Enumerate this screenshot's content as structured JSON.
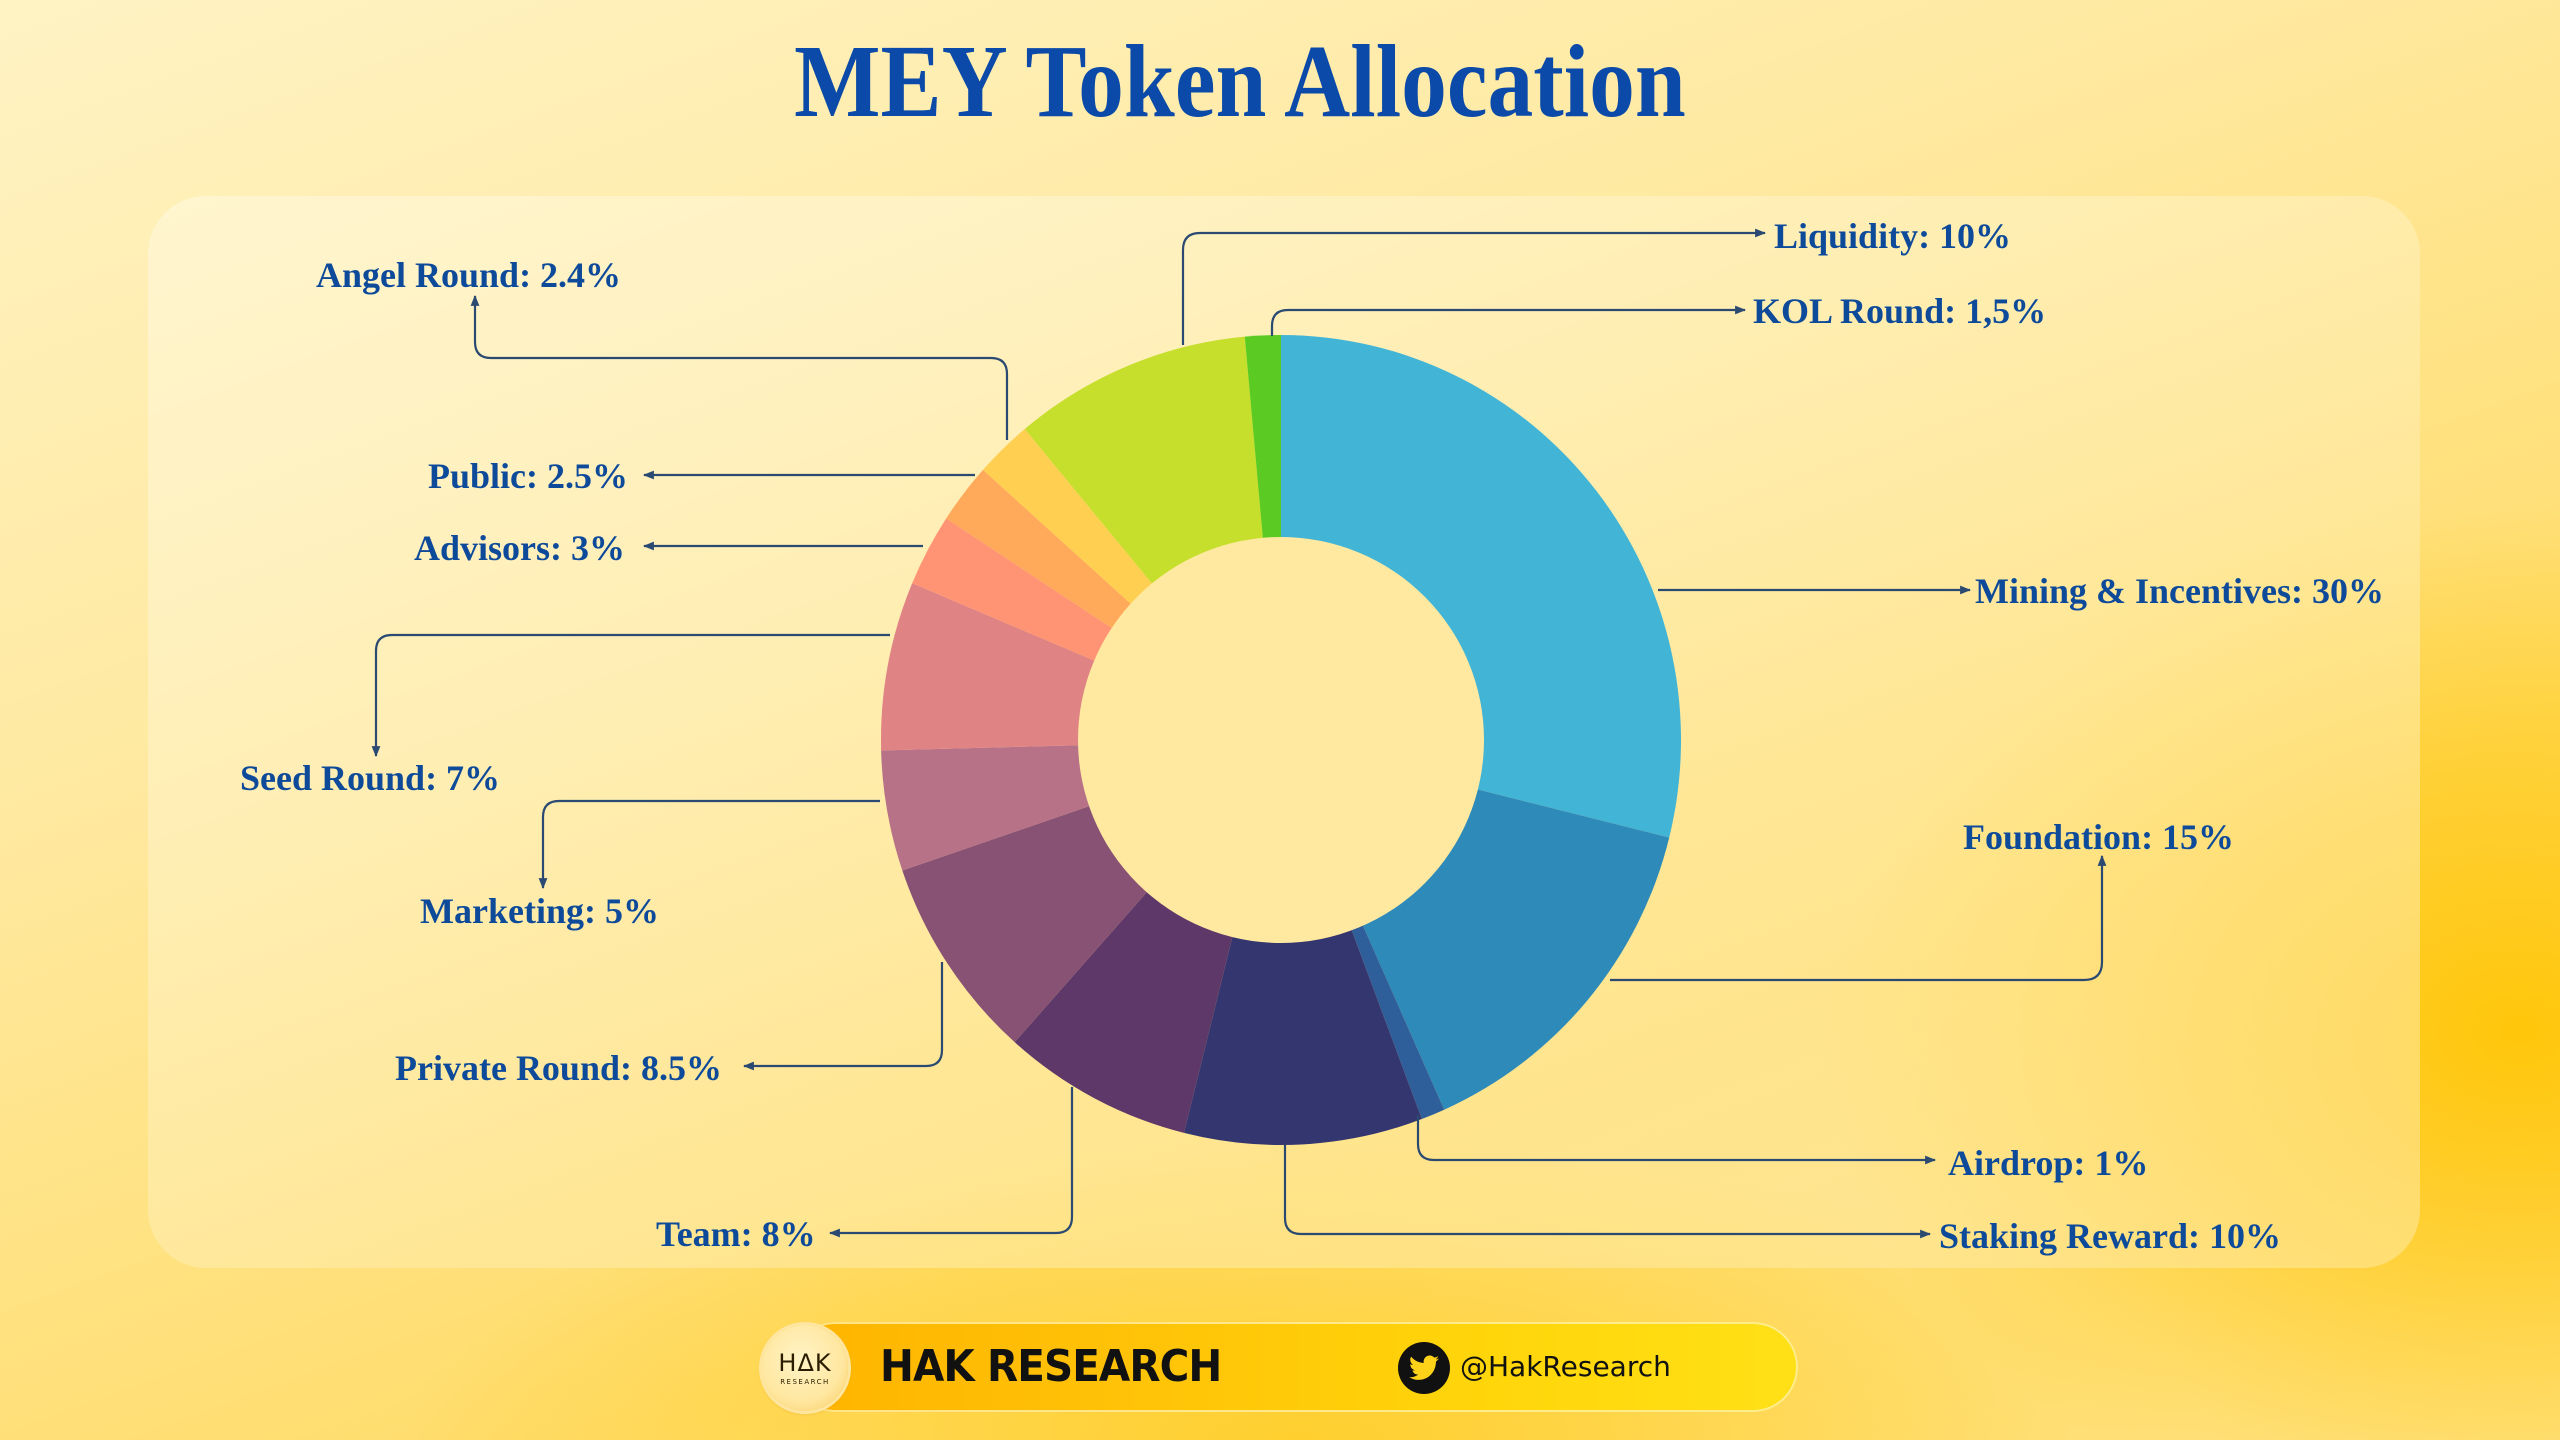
{
  "title": "MEY Token Allocation",
  "chart_data": {
    "type": "pie",
    "subtype": "donut",
    "title": "MEY Token Allocation",
    "unit": "%",
    "categories": [
      "Mining & Incentives",
      "Foundation",
      "Airdrop",
      "Staking Reward",
      "Team",
      "Private Round",
      "Marketing",
      "Seed Round",
      "Advisors",
      "Public",
      "Angel Round",
      "Liquidity",
      "KOL Round"
    ],
    "values": [
      30,
      15,
      1,
      10,
      8,
      8.5,
      5,
      7,
      3,
      2.5,
      2.4,
      10,
      1.5
    ],
    "labels": [
      "Mining & Incentives: 30%",
      "Foundation: 15%",
      "Airdrop: 1%",
      "Staking Reward: 10%",
      "Team: 8%",
      "Private Round: 8.5%",
      "Marketing: 5%",
      "Seed Round: 7%",
      "Advisors: 3%",
      "Public: 2.5%",
      "Angel Round: 2.4%",
      "Liquidity: 10%",
      "KOL Round: 1,5%"
    ],
    "colors": [
      "#42b5d7",
      "#2e8ab9",
      "#2f5f9b",
      "#33366f",
      "#5e3869",
      "#885274",
      "#b87287",
      "#e08384",
      "#ff9474",
      "#ffaa5a",
      "#ffcf52",
      "#c6de2c",
      "#5bcb24"
    ],
    "start_angle_deg": 0,
    "direction": "clockwise",
    "legend": "callout labels with leader lines"
  },
  "footer": {
    "logo_main": "HΔK",
    "logo_sub": "RESEARCH",
    "brand": "HAK RESEARCH",
    "twitter_icon": "twitter-bird-icon",
    "handle": "@HakResearch"
  }
}
